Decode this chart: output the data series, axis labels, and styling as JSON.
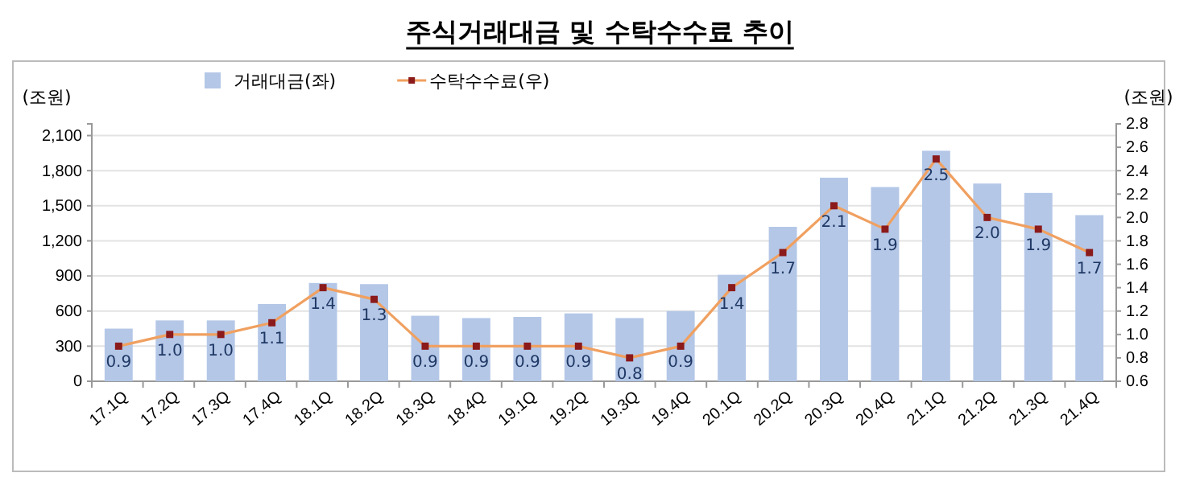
{
  "chart_data": {
    "type": "bar",
    "title": "주식거래대금 및 수탁수수료 추이",
    "ylabel": "(조원)",
    "y2label": "(조원)",
    "categories": [
      "17.1Q",
      "17.2Q",
      "17.3Q",
      "17.4Q",
      "18.1Q",
      "18.2Q",
      "18.3Q",
      "18.4Q",
      "19.1Q",
      "19.2Q",
      "19.3Q",
      "19.4Q",
      "20.1Q",
      "20.2Q",
      "20.3Q",
      "20.4Q",
      "21.1Q",
      "21.2Q",
      "21.3Q",
      "21.4Q"
    ],
    "series": [
      {
        "name": "거래대금(좌)",
        "color": "#b4c7e7",
        "values": [
          450,
          520,
          520,
          660,
          840,
          830,
          560,
          540,
          550,
          580,
          540,
          600,
          910,
          1320,
          1740,
          1660,
          1970,
          1690,
          1610,
          1420
        ]
      },
      {
        "name": "수탁수수료(우)",
        "type": "line",
        "axis": "y2",
        "color": "#f0a060",
        "marker": "square",
        "values": [
          0.9,
          1.0,
          1.0,
          1.1,
          1.4,
          1.3,
          0.9,
          0.9,
          0.9,
          0.9,
          0.8,
          0.9,
          1.4,
          1.7,
          2.1,
          1.9,
          2.5,
          2.0,
          1.9,
          1.7
        ],
        "value_labels": [
          "0.9",
          "1.0",
          "1.0",
          "1.1",
          "1.4",
          "1.3",
          "0.9",
          "0.9",
          "0.9",
          "0.9",
          "0.8",
          "0.9",
          "1.4",
          "1.7",
          "2.1",
          "1.9",
          "2.5",
          "2.0",
          "1.9",
          "1.7"
        ]
      }
    ],
    "ylim": [
      0,
      2200
    ],
    "yticks": [
      0,
      300,
      600,
      900,
      {
        "value": 1200,
        "label": "1,200"
      },
      {
        "value": 1500,
        "label": "1,500"
      },
      {
        "value": 1800,
        "label": "1,800"
      },
      {
        "value": 2100,
        "label": "2,100"
      }
    ],
    "y2lim": [
      0.6,
      2.8
    ],
    "y2ticks": [
      0.6,
      0.8,
      {
        "value": 1.0,
        "label": "1.0"
      },
      1.2,
      1.4,
      1.6,
      1.8,
      {
        "value": 2.0,
        "label": "2.0"
      },
      2.2,
      2.4,
      2.6,
      2.8
    ],
    "grid": "y",
    "legend": "top"
  }
}
